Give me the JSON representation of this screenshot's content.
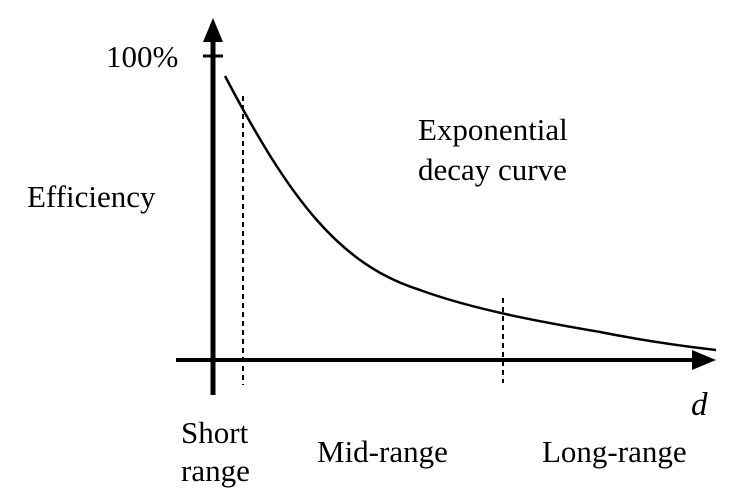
{
  "y_axis": {
    "max_tick_label": "100%",
    "label": "Efficiency"
  },
  "x_axis": {
    "label": "d"
  },
  "curve": {
    "label_line1": "Exponential",
    "label_line2": "decay curve"
  },
  "regions": {
    "short_line1": "Short",
    "short_line2": "range",
    "mid": "Mid-range",
    "long": "Long-range"
  },
  "colors": {
    "ink": "#000000",
    "background": "#ffffff"
  }
}
